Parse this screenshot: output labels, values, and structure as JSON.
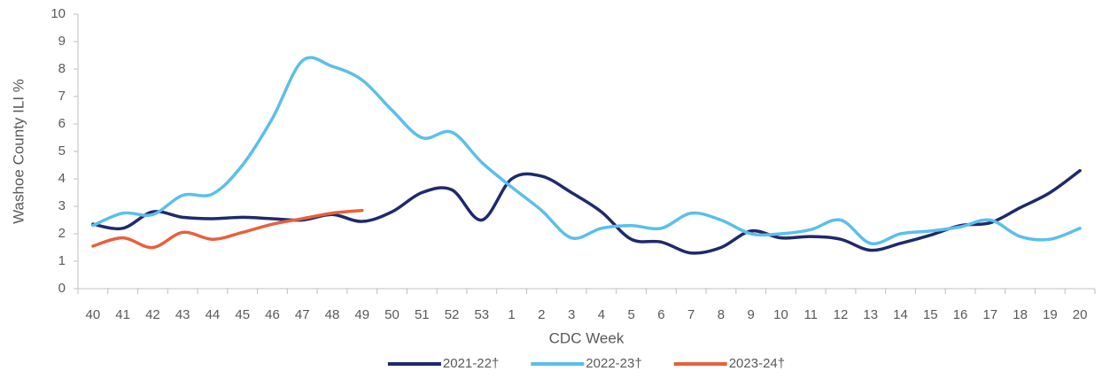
{
  "chart_data": {
    "type": "line",
    "y_label": "Washoe County ILI %",
    "x_label": "CDC Week",
    "categories": [
      "40",
      "41",
      "42",
      "43",
      "44",
      "45",
      "46",
      "47",
      "48",
      "49",
      "50",
      "51",
      "52",
      "53",
      "1",
      "2",
      "3",
      "4",
      "5",
      "6",
      "7",
      "8",
      "9",
      "10",
      "11",
      "12",
      "13",
      "14",
      "15",
      "16",
      "17",
      "18",
      "19",
      "20"
    ],
    "series": [
      {
        "name": "2021-22†",
        "color": "#1f2a6b",
        "values": [
          2.35,
          2.2,
          2.8,
          2.6,
          2.55,
          2.6,
          2.55,
          2.5,
          2.7,
          2.45,
          2.8,
          3.5,
          3.6,
          2.5,
          4.0,
          4.1,
          3.5,
          2.8,
          1.8,
          1.7,
          1.3,
          1.5,
          2.1,
          1.85,
          1.9,
          1.8,
          1.4,
          1.65,
          1.95,
          2.3,
          2.4,
          2.95,
          3.5,
          4.3
        ]
      },
      {
        "name": "2022-23†",
        "color": "#5bbfea",
        "values": [
          2.3,
          2.75,
          2.7,
          3.4,
          3.45,
          4.5,
          6.2,
          8.3,
          8.1,
          7.6,
          6.5,
          5.5,
          5.7,
          4.6,
          3.7,
          2.85,
          1.85,
          2.2,
          2.3,
          2.2,
          2.75,
          2.5,
          2.0,
          2.0,
          2.15,
          2.5,
          1.65,
          2.0,
          2.1,
          2.25,
          2.5,
          1.9,
          1.8,
          2.2
        ]
      },
      {
        "name": "2023-24†",
        "color": "#e8603c",
        "values": [
          1.55,
          1.85,
          1.5,
          2.05,
          1.8,
          2.05,
          2.35,
          2.55,
          2.75,
          2.85,
          null,
          null,
          null,
          null,
          null,
          null,
          null,
          null,
          null,
          null,
          null,
          null,
          null,
          null,
          null,
          null,
          null,
          null,
          null,
          null,
          null,
          null,
          null,
          null
        ]
      }
    ],
    "ylim": [
      0,
      10
    ],
    "yticks": [
      0,
      1,
      2,
      3,
      4,
      5,
      6,
      7,
      8,
      9,
      10
    ],
    "grid": false,
    "legend": "bottom"
  }
}
